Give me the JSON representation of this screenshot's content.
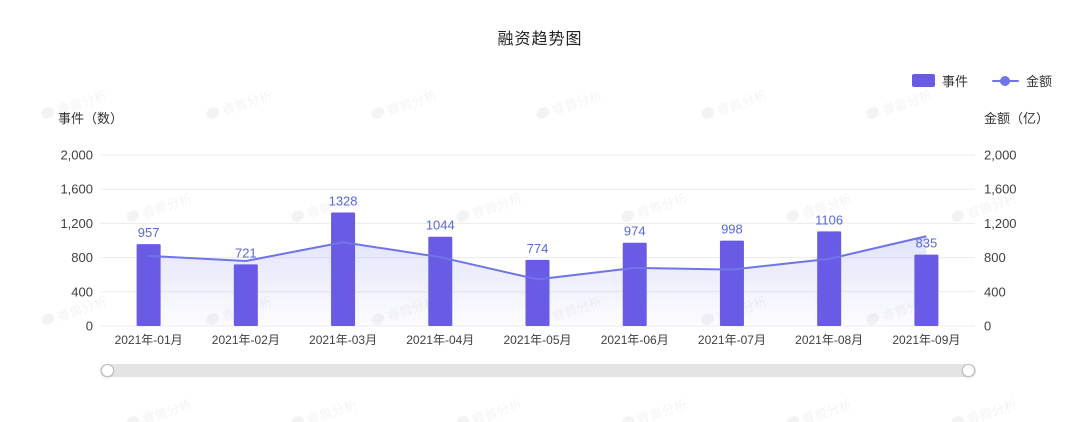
{
  "watermark": {
    "text": "睿兽分析"
  },
  "colors": {
    "grid": "#ececec",
    "tick_text": "#404040",
    "slider_track": "#e4e4e4"
  },
  "chart_data": {
    "type": "combo",
    "title": "融资趋势图",
    "categories": [
      "2021年-01月",
      "2021年-02月",
      "2021年-03月",
      "2021年-04月",
      "2021年-05月",
      "2021年-06月",
      "2021年-07月",
      "2021年-08月",
      "2021年-09月"
    ],
    "series": [
      {
        "name": "事件",
        "type": "bar",
        "values": [
          957,
          721,
          1328,
          1044,
          774,
          974,
          998,
          1106,
          835
        ],
        "color": "#6A5BE6",
        "label_color": "#5968DB"
      },
      {
        "name": "金额",
        "type": "line",
        "area": true,
        "values": [
          820,
          760,
          980,
          805,
          545,
          680,
          660,
          785,
          1050
        ],
        "color": "#6F74E8"
      }
    ],
    "ylim": [
      0,
      2000
    ],
    "yticks": [
      0,
      400,
      800,
      1200,
      1600,
      2000
    ],
    "ytick_labels": [
      "0",
      "400",
      "800",
      "1,200",
      "1,600",
      "2,000"
    ],
    "left_axis": {
      "name": "事件（数）"
    },
    "right_axis": {
      "name": "金额（亿）"
    },
    "grid": true,
    "legend_position": "top-right"
  }
}
